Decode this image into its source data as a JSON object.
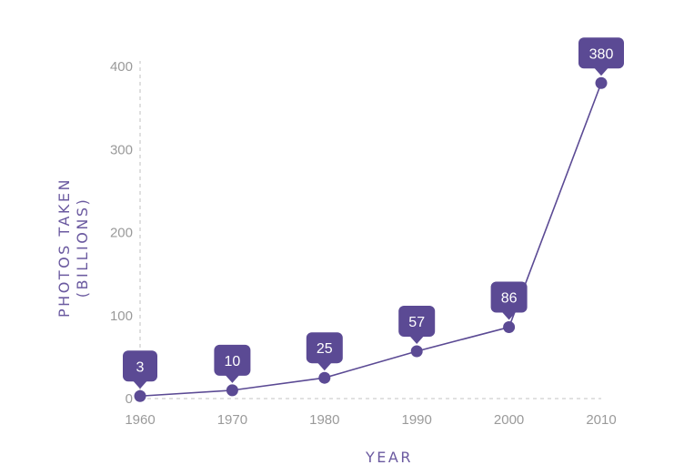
{
  "chart_data": {
    "type": "line",
    "title": "",
    "xlabel": "YEAR",
    "ylabel": [
      "PHOTOS TAKEN",
      "(BILLIONS)"
    ],
    "x": [
      1960,
      1970,
      1980,
      1990,
      2000,
      2010
    ],
    "series": [
      {
        "values": [
          3,
          10,
          25,
          57,
          86,
          380
        ]
      }
    ],
    "data_labels": [
      "3",
      "10",
      "25",
      "57",
      "86",
      "380"
    ],
    "x_tick_labels": [
      "1960",
      "1970",
      "1980",
      "1990",
      "2000",
      "2010"
    ],
    "y_tick_labels": [
      "0",
      "100",
      "200",
      "300",
      "400"
    ],
    "y_ticks": [
      0,
      100,
      200,
      300,
      400
    ],
    "xlim": [
      1960,
      2010
    ],
    "ylim": [
      0,
      400
    ],
    "grid": false,
    "legend": "none",
    "colors": {
      "series": "#5b4a94",
      "axis_label": "#6b5aa0",
      "tick": "#9a9a9a",
      "axis_line": "#cfcfcf"
    }
  }
}
